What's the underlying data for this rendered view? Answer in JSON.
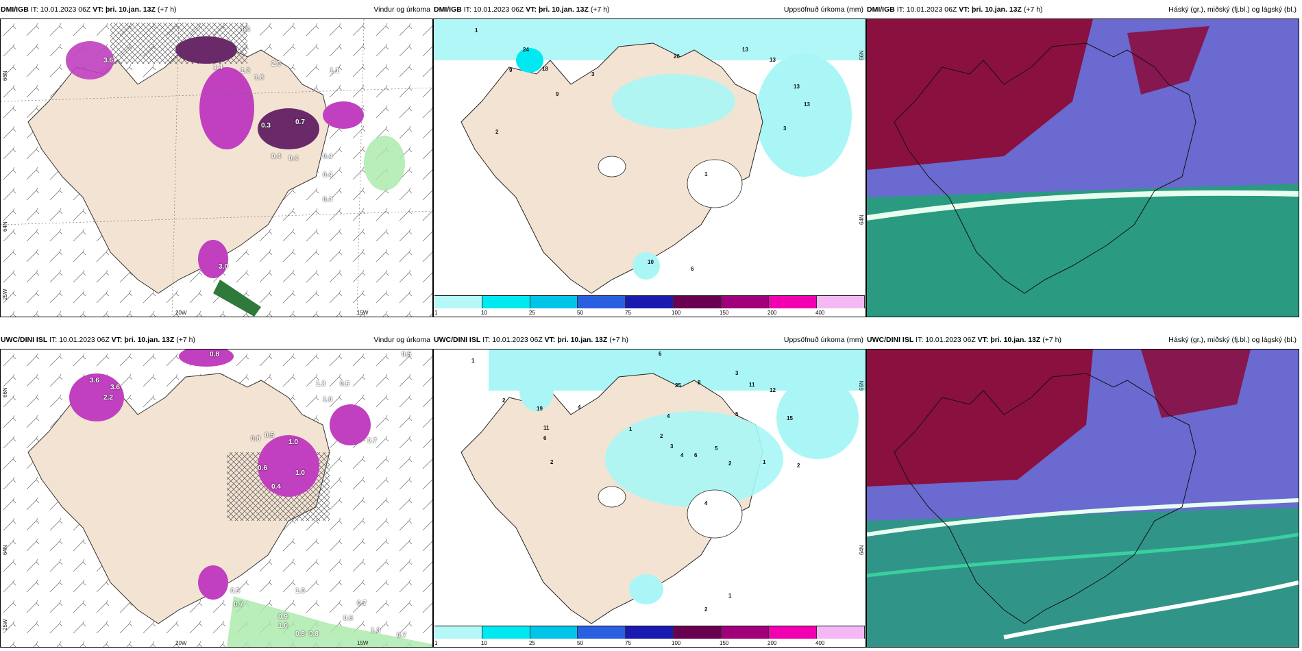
{
  "panels": [
    {
      "id": "dmi-wind",
      "model": "DMI/IGB",
      "it_label": "IT:",
      "it_value": "10.01.2023 06Z",
      "vt_label": "VT:",
      "vt_value": "þri. 10.jan. 13Z",
      "lead": "(+7 h)",
      "product": "Vindur og úrkoma",
      "values": [
        "1.4",
        "3.6",
        "1.4",
        "1.3",
        "2.0",
        "1.8",
        "1.1",
        "0.3",
        "0.7",
        "0.4",
        "0.4",
        "0.4",
        "0.4",
        "0.4",
        "3.0"
      ],
      "lon_labels": [
        "20W",
        "15W"
      ],
      "lat_labels": [
        "66N",
        "64N",
        "25W"
      ]
    },
    {
      "id": "dmi-precip",
      "model": "DMI/IGB",
      "it_label": "IT:",
      "it_value": "10.01.2023 06Z",
      "vt_label": "VT:",
      "vt_value": "þri. 10.jan. 13Z",
      "lead": "(+7 h)",
      "product": "Uppsöfnuð úrkoma (mm)",
      "values": [
        "1",
        "24",
        "9",
        "18",
        "9",
        "3",
        "26",
        "13",
        "13",
        "13",
        "13",
        "3",
        "2",
        "1",
        "10",
        "6"
      ],
      "lat_labels": [
        "66N",
        "64N"
      ]
    },
    {
      "id": "dmi-cloud",
      "model": "DMI/IGB",
      "it_label": "IT:",
      "it_value": "10.01.2023 06Z",
      "vt_label": "VT:",
      "vt_value": "þri. 10.jan. 13Z",
      "lead": "(+7 h)",
      "product": "Háský (gr.), miðský (fj.bl.) og lágský (bl.)"
    },
    {
      "id": "uwc-wind",
      "model": "UWC/DINI ISL",
      "it_label": "IT:",
      "it_value": "10.01.2023 06Z",
      "vt_label": "VT:",
      "vt_value": "þri. 10.jan. 13Z",
      "lead": "(+7 h)",
      "product": "Vindur og úrkoma",
      "values": [
        "0.8",
        "0.5",
        "3.6",
        "3.6",
        "2.2",
        "1.3",
        "1.0",
        "0.5",
        "0.8",
        "0.5",
        "1.0",
        "0.4",
        "0.7",
        "0.6",
        "1.0",
        "0.5",
        "0.7",
        "1.0",
        "0.7",
        "0.9",
        "1.0",
        "0.8",
        "0.8",
        "0.6",
        "1.3",
        "0.7"
      ],
      "lon_labels": [
        "20W",
        "15W"
      ],
      "lat_labels": [
        "66N",
        "64N",
        "25W"
      ]
    },
    {
      "id": "uwc-precip",
      "model": "UWC/DINI ISL",
      "it_label": "IT:",
      "it_value": "10.01.2023 06Z",
      "vt_label": "VT:",
      "vt_value": "þri. 10.jan. 13Z",
      "lead": "(+7 h)",
      "product": "Uppsöfnuð úrkoma (mm)",
      "values": [
        "1",
        "6",
        "2",
        "19",
        "11",
        "6",
        "2",
        "4",
        "25",
        "8",
        "3",
        "11",
        "12",
        "5",
        "15",
        "4",
        "1",
        "2",
        "3",
        "4",
        "5",
        "6",
        "2",
        "1",
        "2",
        "4",
        "1",
        "2"
      ],
      "lat_labels": [
        "66N",
        "64N"
      ]
    },
    {
      "id": "uwc-cloud",
      "model": "UWC/DINI ISL",
      "it_label": "IT:",
      "it_value": "10.01.2023 06Z",
      "vt_label": "VT:",
      "vt_value": "þri. 10.jan. 13Z",
      "lead": "(+7 h)",
      "product": "Háský (gr.), miðský (fj.bl.) og lágský (bl.)"
    }
  ],
  "legend": {
    "ticks": [
      "1",
      "10",
      "25",
      "50",
      "75",
      "100",
      "150",
      "200",
      "400"
    ],
    "colors": [
      "#b4f8f8",
      "#00e8f0",
      "#00c4e8",
      "#2a60e0",
      "#1a1ab0",
      "#6a0050",
      "#a0007a",
      "#f000b0",
      "#f4b8f4"
    ]
  },
  "colors": {
    "land": "#f3e3d3",
    "precip_magenta": "#c040c0",
    "precip_dark": "#6a2a6a",
    "precip_green": "#a8e8a8",
    "cyan_light": "#aaf6f6",
    "high_cloud": "#8a1040",
    "mid_cloud": "#6a6ad0",
    "low_cloud": "#2a9a80"
  }
}
